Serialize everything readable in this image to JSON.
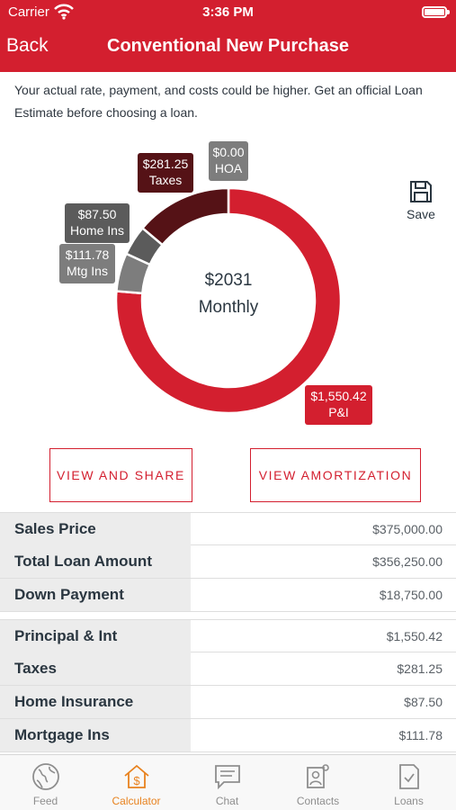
{
  "status_bar": {
    "carrier": "Carrier",
    "time": "3:36 PM"
  },
  "nav": {
    "back_label": "Back",
    "title": "Conventional New Purchase"
  },
  "disclaimer": "Your actual rate, payment, and costs could be higher. Get an official Loan Estimate before choosing a loan.",
  "chart_data": {
    "type": "pie",
    "style": "donut",
    "center_amount": "$2031",
    "center_label": "Monthly",
    "slices": [
      {
        "label": "P&I",
        "value": 1550.42,
        "value_label": "$1,550.42",
        "color": "#d31f2f"
      },
      {
        "label": "Mtg Ins",
        "value": 111.78,
        "value_label": "$111.78",
        "color": "#7d7d7d"
      },
      {
        "label": "Home Ins",
        "value": 87.5,
        "value_label": "$87.50",
        "color": "#5b5b5b"
      },
      {
        "label": "Taxes",
        "value": 281.25,
        "value_label": "$281.25",
        "color": "#551216"
      },
      {
        "label": "HOA",
        "value": 0.0,
        "value_label": "$0.00",
        "color": "#7d7d7d"
      }
    ]
  },
  "save_label": "Save",
  "buttons": {
    "view_share": "VIEW AND SHARE",
    "view_amortization": "VIEW AMORTIZATION"
  },
  "loan_summary": [
    {
      "label": "Sales Price",
      "value": "$375,000.00"
    },
    {
      "label": "Total Loan Amount",
      "value": "$356,250.00"
    },
    {
      "label": "Down Payment",
      "value": "$18,750.00"
    }
  ],
  "payment_breakdown": [
    {
      "label": "Principal & Int",
      "value": "$1,550.42"
    },
    {
      "label": "Taxes",
      "value": "$281.25"
    },
    {
      "label": "Home Insurance",
      "value": "$87.50"
    },
    {
      "label": "Mortgage Ins",
      "value": "$111.78"
    }
  ],
  "tabs": [
    {
      "label": "Feed",
      "icon": "globe-icon",
      "active": false
    },
    {
      "label": "Calculator",
      "icon": "house-dollar-icon",
      "active": true
    },
    {
      "label": "Chat",
      "icon": "chat-icon",
      "active": false
    },
    {
      "label": "Contacts",
      "icon": "contacts-icon",
      "active": false
    },
    {
      "label": "Loans",
      "icon": "document-check-icon",
      "active": false
    }
  ],
  "colors": {
    "brand_red": "#d31f2f",
    "active_tab": "#e8821e",
    "label_bg": "#ececec"
  }
}
